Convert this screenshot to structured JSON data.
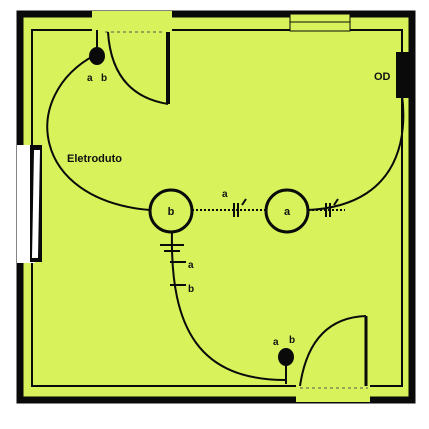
{
  "plan": {
    "background_color": "#d7f25a",
    "wall_color": "#0a0a0a",
    "conduit_label": "Eletroduto",
    "top_switch": {
      "a": "a",
      "b": "b"
    },
    "bottom_switch": {
      "a": "a",
      "b": "b"
    },
    "left_lamp": {
      "label": "b"
    },
    "right_lamp": {
      "label": "a"
    },
    "circuit_mark": "a",
    "wire_labels": [
      "a",
      "b"
    ],
    "outlet_label": "OD"
  }
}
